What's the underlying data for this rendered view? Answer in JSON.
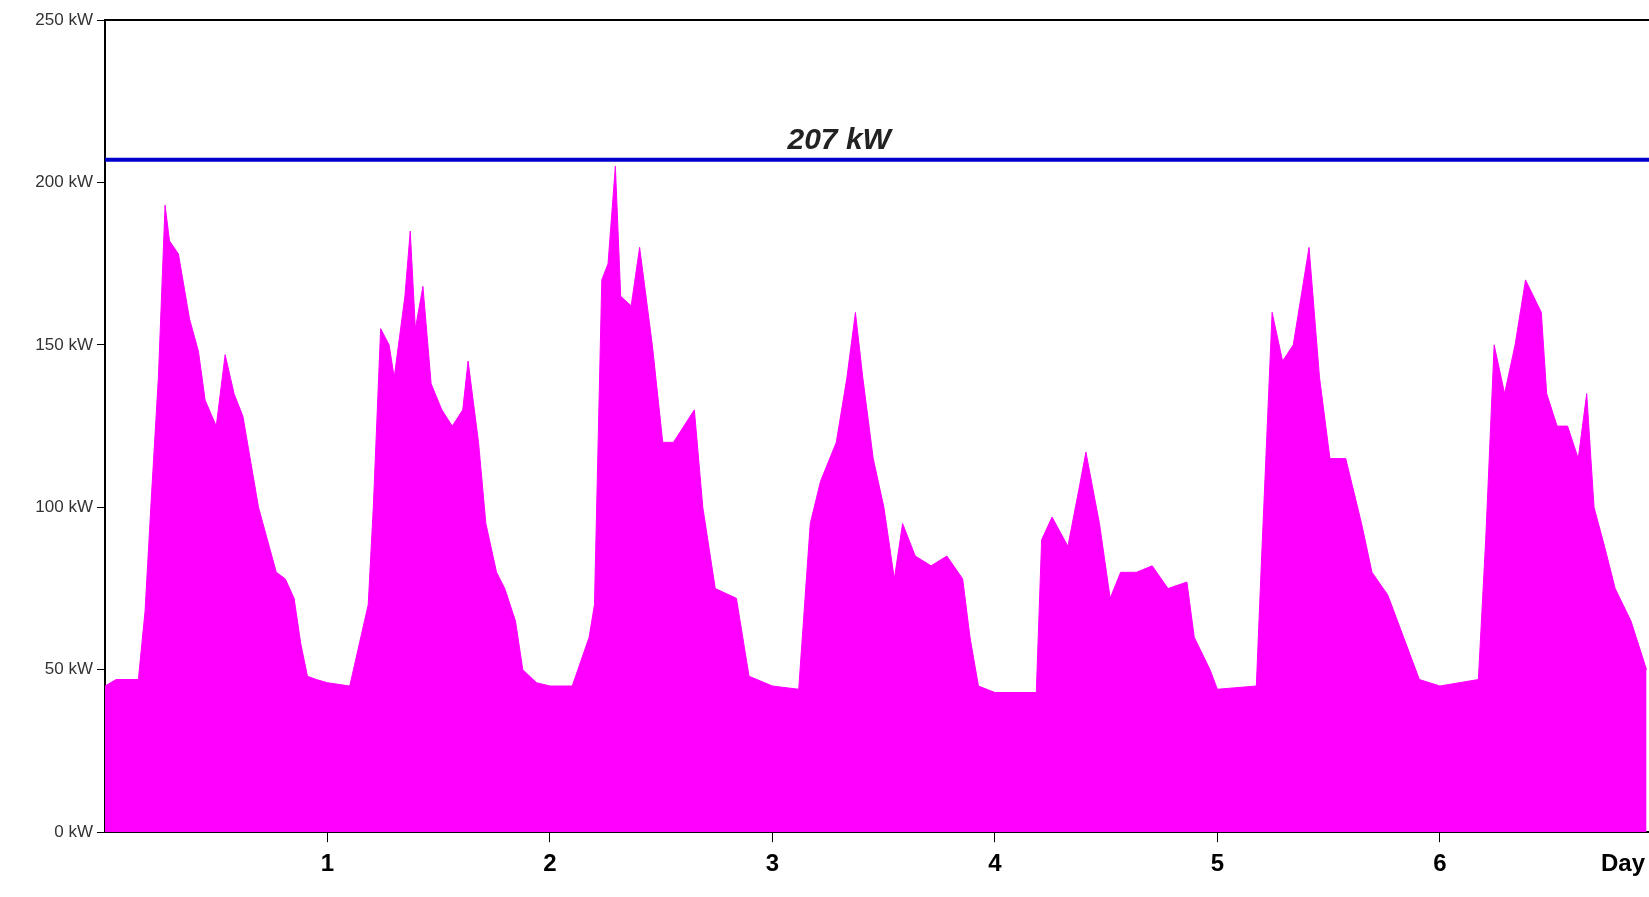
{
  "chart_data": {
    "type": "area",
    "xlabel": "Day",
    "xlim": [
      0,
      6.94
    ],
    "xticks": [
      1,
      2,
      3,
      4,
      5,
      6
    ],
    "ylim": [
      0,
      250
    ],
    "yticks": [
      {
        "value": 0,
        "label": "0 kW"
      },
      {
        "value": 50,
        "label": "50 kW"
      },
      {
        "value": 100,
        "label": "100 kW"
      },
      {
        "value": 150,
        "label": "150 kW"
      },
      {
        "value": 200,
        "label": "200 kW"
      },
      {
        "value": 250,
        "label": "250 kW"
      }
    ],
    "grid": false,
    "legend": false,
    "ref_lines": [
      {
        "axis": "y",
        "value": 207,
        "label": "207 kW",
        "color": "#0000cc"
      }
    ],
    "series": [
      {
        "color": "#ff00ff",
        "x": [
          0,
          0.05,
          0.15,
          0.18,
          0.21,
          0.24,
          0.27,
          0.29,
          0.33,
          0.38,
          0.42,
          0.45,
          0.5,
          0.54,
          0.58,
          0.62,
          0.66,
          0.69,
          0.73,
          0.77,
          0.81,
          0.85,
          0.88,
          0.91,
          0.95,
          1.0,
          1.1,
          1.183,
          1.206,
          1.239,
          1.277,
          1.3,
          1.348,
          1.372,
          1.395,
          1.429,
          1.466,
          1.514,
          1.561,
          1.608,
          1.632,
          1.679,
          1.712,
          1.76,
          1.797,
          1.845,
          1.878,
          1.94,
          2.0,
          2.1,
          2.176,
          2.2,
          2.233,
          2.261,
          2.294,
          2.318,
          2.365,
          2.403,
          2.46,
          2.507,
          2.555,
          2.649,
          2.687,
          2.743,
          2.838,
          2.895,
          3.0,
          3.118,
          3.17,
          3.216,
          3.287,
          3.335,
          3.373,
          3.406,
          3.453,
          3.501,
          3.548,
          3.585,
          3.642,
          3.713,
          3.784,
          3.855,
          3.888,
          3.926,
          4.0,
          4.186,
          4.21,
          4.257,
          4.328,
          4.376,
          4.409,
          4.47,
          4.518,
          4.565,
          4.636,
          4.707,
          4.778,
          4.863,
          4.896,
          4.967,
          5.0,
          5.175,
          5.199,
          5.246,
          5.293,
          5.341,
          5.412,
          5.459,
          5.506,
          5.577,
          5.648,
          5.695,
          5.766,
          5.837,
          5.908,
          6.0,
          6.173,
          6.206,
          6.244,
          6.291,
          6.338,
          6.385,
          6.456,
          6.48,
          6.527,
          6.574,
          6.622,
          6.66,
          6.693,
          6.74,
          6.788,
          6.859,
          6.929
        ],
        "values": [
          45,
          47,
          47,
          68,
          105,
          140,
          193,
          182,
          178,
          158,
          148,
          133,
          125,
          147,
          135,
          128,
          112,
          100,
          90,
          80,
          78,
          72,
          58,
          48,
          47,
          46,
          45,
          70,
          100,
          155,
          150,
          140,
          165,
          185,
          155,
          168,
          138,
          130,
          125,
          130,
          145,
          120,
          95,
          80,
          75,
          65,
          50,
          46,
          45,
          45,
          60,
          70,
          170,
          175,
          205,
          165,
          162,
          180,
          150,
          120,
          120,
          130,
          100,
          75,
          72,
          48,
          45,
          44,
          95,
          108,
          120,
          140,
          160,
          140,
          115,
          100,
          78,
          95,
          85,
          82,
          85,
          78,
          60,
          45,
          43,
          43,
          90,
          97,
          88,
          105,
          117,
          95,
          72,
          80,
          80,
          82,
          75,
          77,
          60,
          50,
          44,
          45,
          85,
          160,
          145,
          150,
          180,
          140,
          115,
          115,
          95,
          80,
          73,
          60,
          47,
          45,
          47,
          90,
          150,
          135,
          150,
          170,
          160,
          135,
          125,
          125,
          115,
          135,
          100,
          88,
          75,
          65,
          50
        ]
      }
    ]
  }
}
